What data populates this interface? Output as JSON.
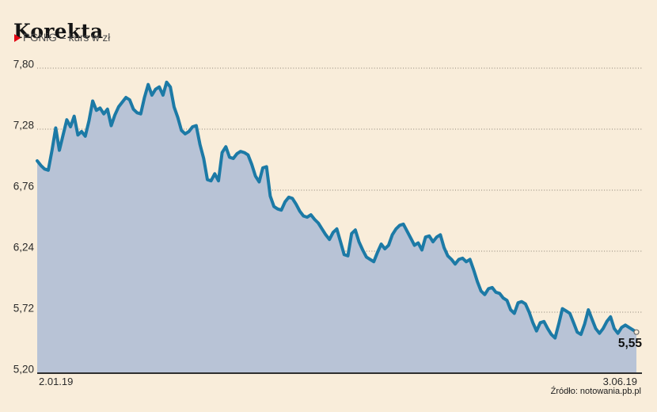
{
  "header": {
    "title": "Korekta",
    "subtitle": "PGNiG – kurs w zł"
  },
  "source": "Źródło: notowania.pb.pl",
  "colors": {
    "background": "#f9edda",
    "area_fill": "#b8c3d6",
    "line": "#1c7aa6",
    "grid": "#8a8275",
    "axis": "#2f2f2f",
    "accent_red": "#e30613",
    "text_dark": "#141414",
    "text_gray": "#4f4f4f"
  },
  "chart_data": {
    "type": "area",
    "title": "Korekta",
    "series_name": "PGNiG – kurs w zł",
    "x_start_label": "2.01.19",
    "x_end_label": "3.06.19",
    "ytick_labels": [
      "7,80",
      "7,28",
      "6,76",
      "6,24",
      "5,72",
      "5,20"
    ],
    "yticks": [
      7.8,
      7.28,
      6.76,
      6.24,
      5.72,
      5.2
    ],
    "ylim": [
      5.2,
      7.8
    ],
    "grid": "dotted-horizontal",
    "legend_position": "top-left",
    "end_label": "5,55",
    "last_value": 5.55,
    "values": [
      7.01,
      6.97,
      6.94,
      6.93,
      7.1,
      7.29,
      7.1,
      7.23,
      7.36,
      7.3,
      7.39,
      7.23,
      7.26,
      7.22,
      7.35,
      7.52,
      7.44,
      7.46,
      7.41,
      7.45,
      7.31,
      7.4,
      7.47,
      7.51,
      7.55,
      7.53,
      7.45,
      7.42,
      7.41,
      7.55,
      7.66,
      7.57,
      7.62,
      7.64,
      7.57,
      7.68,
      7.64,
      7.47,
      7.38,
      7.27,
      7.24,
      7.26,
      7.3,
      7.31,
      7.15,
      7.03,
      6.85,
      6.84,
      6.9,
      6.84,
      7.08,
      7.13,
      7.04,
      7.03,
      7.07,
      7.09,
      7.08,
      7.06,
      6.98,
      6.88,
      6.83,
      6.95,
      6.96,
      6.71,
      6.62,
      6.6,
      6.59,
      6.66,
      6.7,
      6.69,
      6.64,
      6.58,
      6.54,
      6.53,
      6.55,
      6.51,
      6.48,
      6.43,
      6.38,
      6.34,
      6.4,
      6.43,
      6.32,
      6.21,
      6.2,
      6.39,
      6.42,
      6.32,
      6.25,
      6.19,
      6.17,
      6.15,
      6.23,
      6.3,
      6.26,
      6.29,
      6.38,
      6.43,
      6.46,
      6.47,
      6.41,
      6.35,
      6.29,
      6.31,
      6.25,
      6.36,
      6.37,
      6.32,
      6.36,
      6.38,
      6.27,
      6.2,
      6.17,
      6.13,
      6.17,
      6.18,
      6.15,
      6.17,
      6.08,
      5.98,
      5.9,
      5.87,
      5.92,
      5.93,
      5.89,
      5.88,
      5.84,
      5.82,
      5.74,
      5.71,
      5.8,
      5.81,
      5.79,
      5.72,
      5.63,
      5.56,
      5.63,
      5.64,
      5.58,
      5.53,
      5.5,
      5.62,
      5.75,
      5.73,
      5.71,
      5.63,
      5.55,
      5.53,
      5.62,
      5.74,
      5.66,
      5.58,
      5.54,
      5.58,
      5.64,
      5.68,
      5.58,
      5.54,
      5.59,
      5.61,
      5.59,
      5.57,
      5.55
    ]
  }
}
